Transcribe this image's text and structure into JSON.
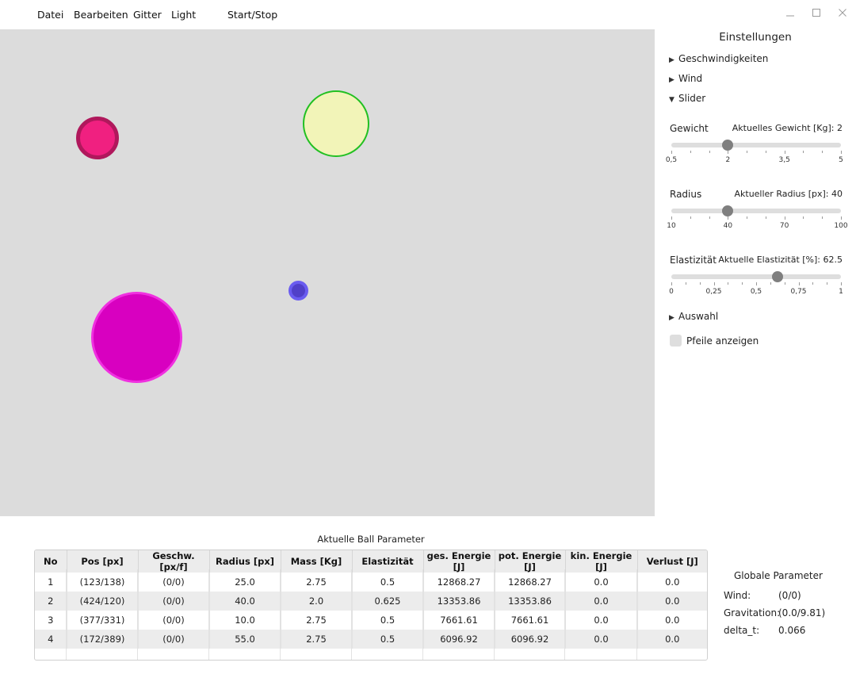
{
  "menu": {
    "file": "Datei",
    "edit": "Bearbeiten",
    "grid": "Gitter",
    "light": "Light",
    "start_stop": "Start/Stop"
  },
  "window_controls": {
    "minimize": "minimize-icon",
    "maximize": "maximize-icon",
    "close": "close-icon"
  },
  "canvas": {
    "background": "#dcdcdc",
    "balls": [
      {
        "fill": "#f02080",
        "border": "#b0185c"
      },
      {
        "fill": "#f2f4b8",
        "border": "#22c022"
      },
      {
        "fill": "#5040c8",
        "border": "#6a5cf0"
      },
      {
        "fill": "#d800c0",
        "border": "#f030e0"
      }
    ]
  },
  "settings": {
    "title": "Einstellungen",
    "sections": {
      "speeds": {
        "label": "Geschwindigkeiten",
        "expanded": false
      },
      "wind": {
        "label": "Wind",
        "expanded": false
      },
      "slider": {
        "label": "Slider",
        "expanded": true
      },
      "selection": {
        "label": "Auswahl",
        "expanded": false
      }
    },
    "sliders": {
      "weight": {
        "label": "Gewicht",
        "value_text": "Aktuelles Gewicht [Kg]: 2",
        "min": 0.5,
        "max": 5,
        "value": 2,
        "tick_labels": [
          "0,5",
          "2",
          "3,5",
          "5"
        ]
      },
      "radius": {
        "label": "Radius",
        "value_text": "Aktueller Radius [px]: 40",
        "min": 10,
        "max": 100,
        "value": 40,
        "tick_labels": [
          "10",
          "40",
          "70",
          "100"
        ]
      },
      "elasticity": {
        "label": "Elastizität",
        "value_text": "Aktuelle Elastizität [%]: 62.5",
        "min": 0,
        "max": 1,
        "value": 0.625,
        "tick_labels": [
          "0",
          "0,25",
          "0,5",
          "0,75",
          "1"
        ]
      }
    },
    "show_arrows": {
      "label": "Pfeile anzeigen",
      "checked": false
    }
  },
  "table": {
    "title": "Aktuelle Ball Parameter",
    "columns": [
      "No",
      "Pos [px]",
      "Geschw. [px/f]",
      "Radius [px]",
      "Mass [Kg]",
      "Elastizität",
      "ges. Energie [J]",
      "pot. Energie [J]",
      "kin. Energie [J]",
      "Verlust [J]"
    ],
    "rows": [
      [
        "1",
        "(123/138)",
        "(0/0)",
        "25.0",
        "2.75",
        "0.5",
        "12868.27",
        "12868.27",
        "0.0",
        "0.0"
      ],
      [
        "2",
        "(424/120)",
        "(0/0)",
        "40.0",
        "2.0",
        "0.625",
        "13353.86",
        "13353.86",
        "0.0",
        "0.0"
      ],
      [
        "3",
        "(377/331)",
        "(0/0)",
        "10.0",
        "2.75",
        "0.5",
        "7661.61",
        "7661.61",
        "0.0",
        "0.0"
      ],
      [
        "4",
        "(172/389)",
        "(0/0)",
        "55.0",
        "2.75",
        "0.5",
        "6096.92",
        "6096.92",
        "0.0",
        "0.0"
      ]
    ]
  },
  "globals": {
    "title": "Globale Parameter",
    "wind_label": "Wind:",
    "wind_value": "(0/0)",
    "gravity_label": "Gravitation:",
    "gravity_value": "(0.0/9.81)",
    "dt_label": "delta_t:",
    "dt_value": "0.066"
  }
}
